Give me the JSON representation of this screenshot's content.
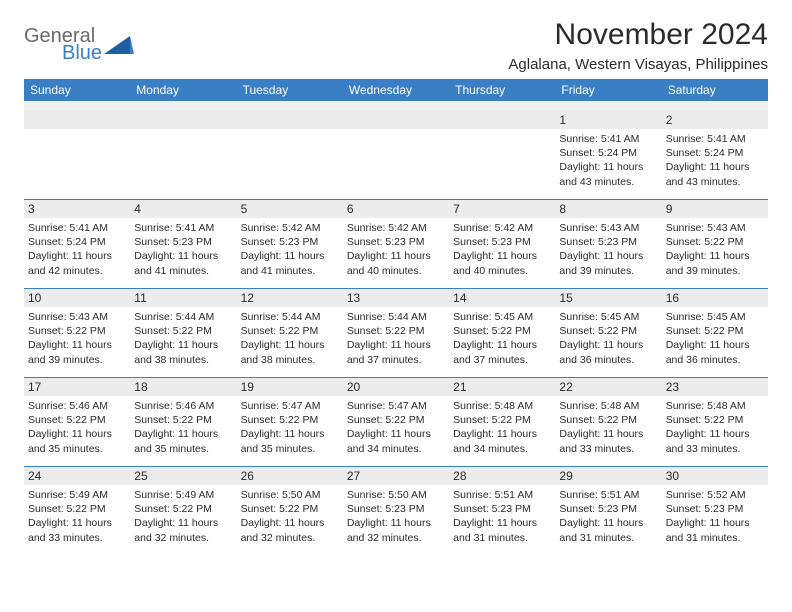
{
  "logo": {
    "top": "General",
    "bottom": "Blue",
    "tri_color": "#1e5fa0"
  },
  "title": "November 2024",
  "location": "Aglalana, Western Visayas, Philippines",
  "colors": {
    "header_bg": "#3a7fc4",
    "header_text": "#ffffff",
    "daynum_bg": "#ececec",
    "divider": "#3a7fc4",
    "text": "#2b2b2b"
  },
  "weekdays": [
    "Sunday",
    "Monday",
    "Tuesday",
    "Wednesday",
    "Thursday",
    "Friday",
    "Saturday"
  ],
  "weeks": [
    [
      {
        "n": "",
        "sr": "",
        "ss": "",
        "dl": ""
      },
      {
        "n": "",
        "sr": "",
        "ss": "",
        "dl": ""
      },
      {
        "n": "",
        "sr": "",
        "ss": "",
        "dl": ""
      },
      {
        "n": "",
        "sr": "",
        "ss": "",
        "dl": ""
      },
      {
        "n": "",
        "sr": "",
        "ss": "",
        "dl": ""
      },
      {
        "n": "1",
        "sr": "Sunrise: 5:41 AM",
        "ss": "Sunset: 5:24 PM",
        "dl": "Daylight: 11 hours and 43 minutes."
      },
      {
        "n": "2",
        "sr": "Sunrise: 5:41 AM",
        "ss": "Sunset: 5:24 PM",
        "dl": "Daylight: 11 hours and 43 minutes."
      }
    ],
    [
      {
        "n": "3",
        "sr": "Sunrise: 5:41 AM",
        "ss": "Sunset: 5:24 PM",
        "dl": "Daylight: 11 hours and 42 minutes."
      },
      {
        "n": "4",
        "sr": "Sunrise: 5:41 AM",
        "ss": "Sunset: 5:23 PM",
        "dl": "Daylight: 11 hours and 41 minutes."
      },
      {
        "n": "5",
        "sr": "Sunrise: 5:42 AM",
        "ss": "Sunset: 5:23 PM",
        "dl": "Daylight: 11 hours and 41 minutes."
      },
      {
        "n": "6",
        "sr": "Sunrise: 5:42 AM",
        "ss": "Sunset: 5:23 PM",
        "dl": "Daylight: 11 hours and 40 minutes."
      },
      {
        "n": "7",
        "sr": "Sunrise: 5:42 AM",
        "ss": "Sunset: 5:23 PM",
        "dl": "Daylight: 11 hours and 40 minutes."
      },
      {
        "n": "8",
        "sr": "Sunrise: 5:43 AM",
        "ss": "Sunset: 5:23 PM",
        "dl": "Daylight: 11 hours and 39 minutes."
      },
      {
        "n": "9",
        "sr": "Sunrise: 5:43 AM",
        "ss": "Sunset: 5:22 PM",
        "dl": "Daylight: 11 hours and 39 minutes."
      }
    ],
    [
      {
        "n": "10",
        "sr": "Sunrise: 5:43 AM",
        "ss": "Sunset: 5:22 PM",
        "dl": "Daylight: 11 hours and 39 minutes."
      },
      {
        "n": "11",
        "sr": "Sunrise: 5:44 AM",
        "ss": "Sunset: 5:22 PM",
        "dl": "Daylight: 11 hours and 38 minutes."
      },
      {
        "n": "12",
        "sr": "Sunrise: 5:44 AM",
        "ss": "Sunset: 5:22 PM",
        "dl": "Daylight: 11 hours and 38 minutes."
      },
      {
        "n": "13",
        "sr": "Sunrise: 5:44 AM",
        "ss": "Sunset: 5:22 PM",
        "dl": "Daylight: 11 hours and 37 minutes."
      },
      {
        "n": "14",
        "sr": "Sunrise: 5:45 AM",
        "ss": "Sunset: 5:22 PM",
        "dl": "Daylight: 11 hours and 37 minutes."
      },
      {
        "n": "15",
        "sr": "Sunrise: 5:45 AM",
        "ss": "Sunset: 5:22 PM",
        "dl": "Daylight: 11 hours and 36 minutes."
      },
      {
        "n": "16",
        "sr": "Sunrise: 5:45 AM",
        "ss": "Sunset: 5:22 PM",
        "dl": "Daylight: 11 hours and 36 minutes."
      }
    ],
    [
      {
        "n": "17",
        "sr": "Sunrise: 5:46 AM",
        "ss": "Sunset: 5:22 PM",
        "dl": "Daylight: 11 hours and 35 minutes."
      },
      {
        "n": "18",
        "sr": "Sunrise: 5:46 AM",
        "ss": "Sunset: 5:22 PM",
        "dl": "Daylight: 11 hours and 35 minutes."
      },
      {
        "n": "19",
        "sr": "Sunrise: 5:47 AM",
        "ss": "Sunset: 5:22 PM",
        "dl": "Daylight: 11 hours and 35 minutes."
      },
      {
        "n": "20",
        "sr": "Sunrise: 5:47 AM",
        "ss": "Sunset: 5:22 PM",
        "dl": "Daylight: 11 hours and 34 minutes."
      },
      {
        "n": "21",
        "sr": "Sunrise: 5:48 AM",
        "ss": "Sunset: 5:22 PM",
        "dl": "Daylight: 11 hours and 34 minutes."
      },
      {
        "n": "22",
        "sr": "Sunrise: 5:48 AM",
        "ss": "Sunset: 5:22 PM",
        "dl": "Daylight: 11 hours and 33 minutes."
      },
      {
        "n": "23",
        "sr": "Sunrise: 5:48 AM",
        "ss": "Sunset: 5:22 PM",
        "dl": "Daylight: 11 hours and 33 minutes."
      }
    ],
    [
      {
        "n": "24",
        "sr": "Sunrise: 5:49 AM",
        "ss": "Sunset: 5:22 PM",
        "dl": "Daylight: 11 hours and 33 minutes."
      },
      {
        "n": "25",
        "sr": "Sunrise: 5:49 AM",
        "ss": "Sunset: 5:22 PM",
        "dl": "Daylight: 11 hours and 32 minutes."
      },
      {
        "n": "26",
        "sr": "Sunrise: 5:50 AM",
        "ss": "Sunset: 5:22 PM",
        "dl": "Daylight: 11 hours and 32 minutes."
      },
      {
        "n": "27",
        "sr": "Sunrise: 5:50 AM",
        "ss": "Sunset: 5:23 PM",
        "dl": "Daylight: 11 hours and 32 minutes."
      },
      {
        "n": "28",
        "sr": "Sunrise: 5:51 AM",
        "ss": "Sunset: 5:23 PM",
        "dl": "Daylight: 11 hours and 31 minutes."
      },
      {
        "n": "29",
        "sr": "Sunrise: 5:51 AM",
        "ss": "Sunset: 5:23 PM",
        "dl": "Daylight: 11 hours and 31 minutes."
      },
      {
        "n": "30",
        "sr": "Sunrise: 5:52 AM",
        "ss": "Sunset: 5:23 PM",
        "dl": "Daylight: 11 hours and 31 minutes."
      }
    ]
  ]
}
